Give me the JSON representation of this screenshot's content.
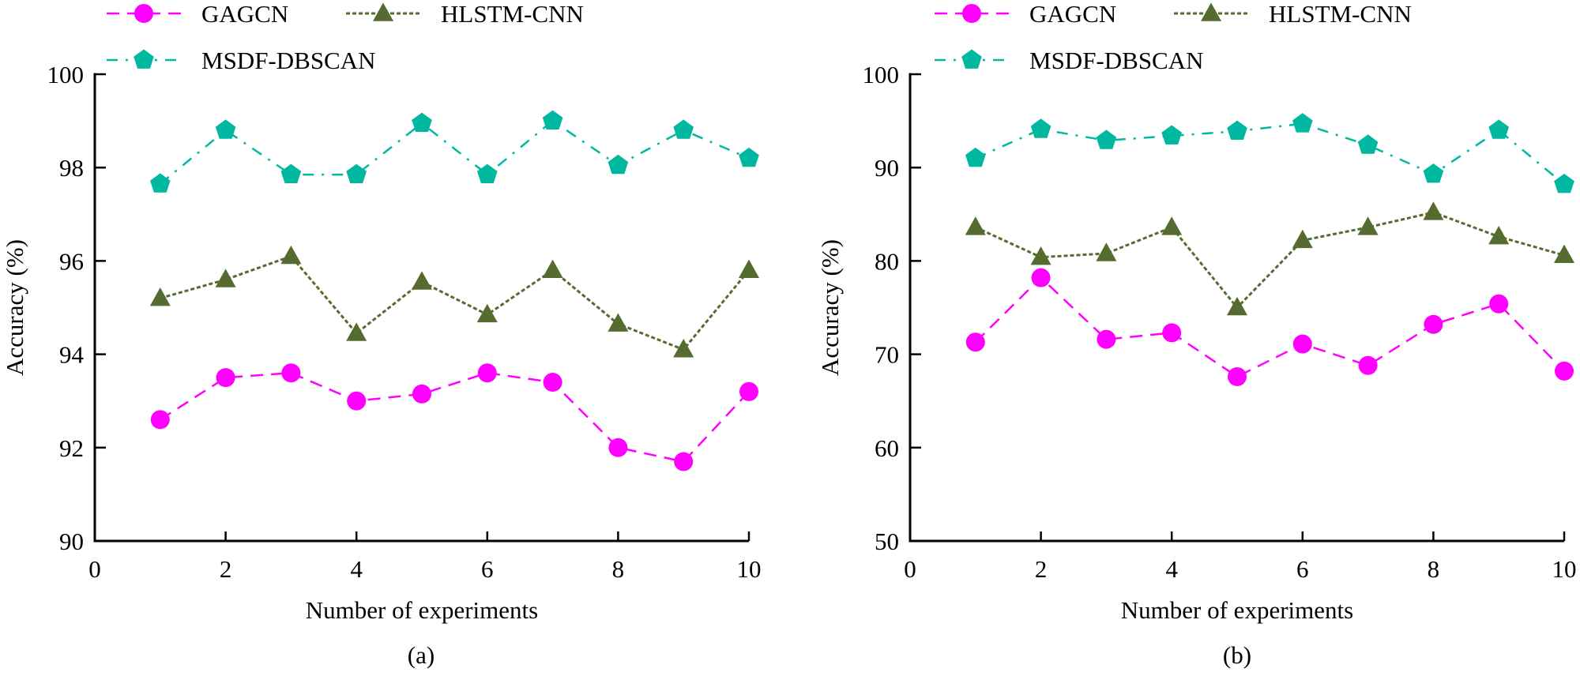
{
  "legend": [
    {
      "name": "GAGCN",
      "color": "#ff00ff",
      "marker": "circle",
      "dash": "dashed"
    },
    {
      "name": "HLSTM-CNN",
      "color": "#556b2f",
      "marker": "triangle",
      "dash": "dotted"
    },
    {
      "name": "MSDF-DBSCAN",
      "color": "#00b8a0",
      "marker": "pentagon",
      "dash": "dash-dot"
    }
  ],
  "chart_data": [
    {
      "type": "line",
      "panel_label": "(a)",
      "title": "",
      "xlabel": "Number of experiments",
      "ylabel": "Accuracy (%)",
      "xlim": [
        0,
        10
      ],
      "ylim": [
        90,
        100
      ],
      "xticks": [
        0,
        2,
        4,
        6,
        8,
        10
      ],
      "yticks": [
        90,
        92,
        94,
        96,
        98,
        100
      ],
      "grid": false,
      "legend_position": "top",
      "x": [
        1,
        2,
        3,
        4,
        5,
        6,
        7,
        8,
        9,
        10
      ],
      "series": [
        {
          "name": "GAGCN",
          "values": [
            92.6,
            93.5,
            93.6,
            93.0,
            93.15,
            93.6,
            93.4,
            92.0,
            91.7,
            93.2
          ]
        },
        {
          "name": "HLSTM-CNN",
          "values": [
            95.2,
            95.6,
            96.1,
            94.45,
            95.55,
            94.85,
            95.8,
            94.65,
            94.1,
            95.8
          ]
        },
        {
          "name": "MSDF-DBSCAN",
          "values": [
            97.65,
            98.8,
            97.85,
            97.85,
            98.95,
            97.85,
            99.0,
            98.05,
            98.8,
            98.2
          ]
        }
      ]
    },
    {
      "type": "line",
      "panel_label": "(b)",
      "title": "",
      "xlabel": "Number of experiments",
      "ylabel": "Accuracy (%)",
      "xlim": [
        0,
        10
      ],
      "ylim": [
        50,
        100
      ],
      "xticks": [
        0,
        2,
        4,
        6,
        8,
        10
      ],
      "yticks": [
        50,
        60,
        70,
        80,
        90,
        100
      ],
      "grid": false,
      "legend_position": "top",
      "x": [
        1,
        2,
        3,
        4,
        5,
        6,
        7,
        8,
        9,
        10
      ],
      "series": [
        {
          "name": "GAGCN",
          "values": [
            71.3,
            78.2,
            71.6,
            72.3,
            67.6,
            71.1,
            68.8,
            73.2,
            75.4,
            68.2
          ]
        },
        {
          "name": "HLSTM-CNN",
          "values": [
            83.6,
            80.4,
            80.8,
            83.6,
            75.0,
            82.2,
            83.6,
            85.2,
            82.6,
            80.6
          ]
        },
        {
          "name": "MSDF-DBSCAN",
          "values": [
            91.0,
            94.1,
            92.9,
            93.4,
            93.9,
            94.7,
            92.4,
            89.3,
            94.0,
            88.2
          ]
        }
      ]
    }
  ]
}
